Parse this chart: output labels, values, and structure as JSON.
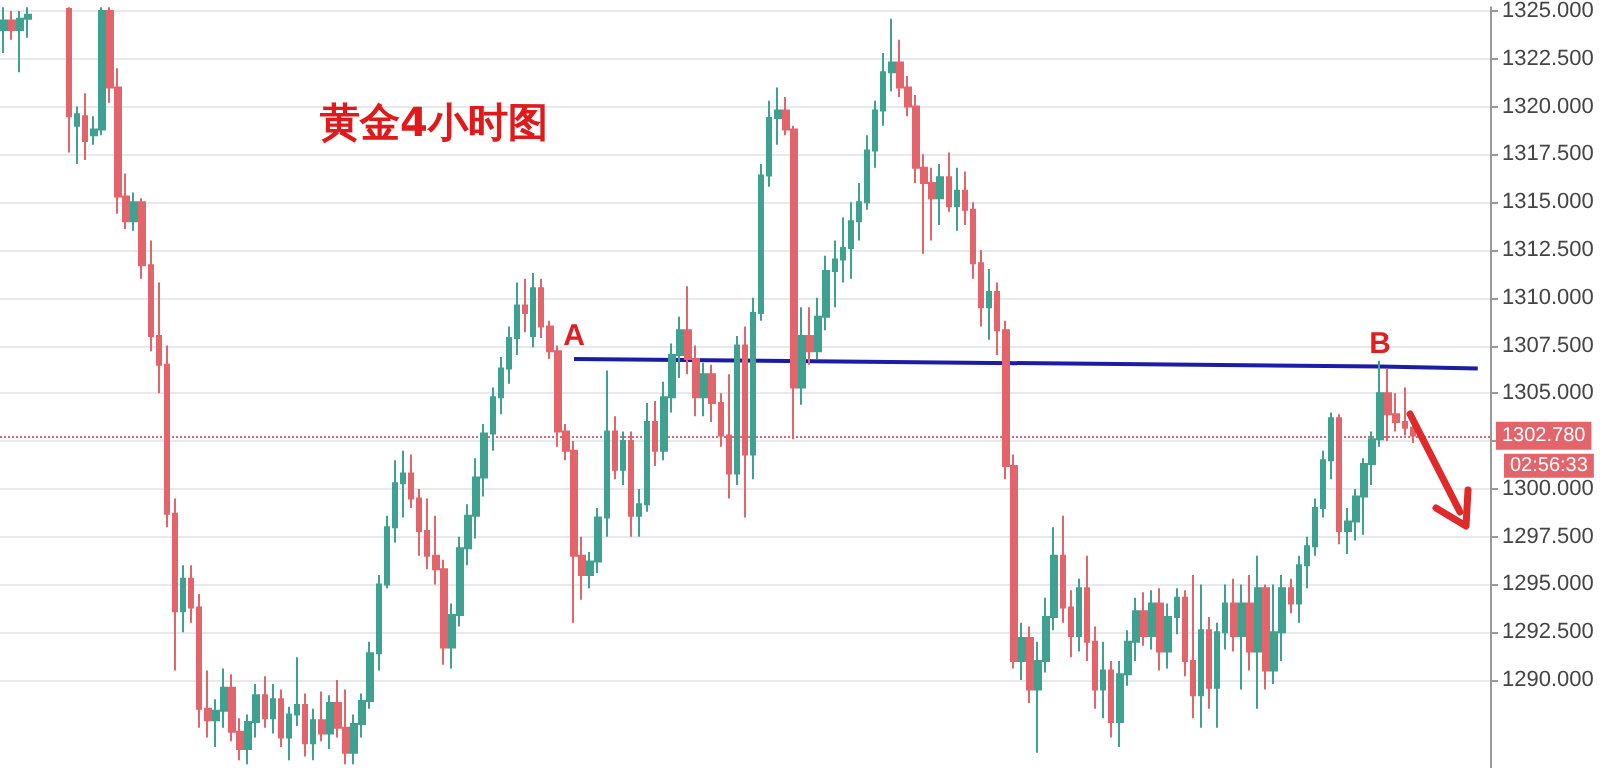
{
  "chart_data": {
    "type": "candlestick",
    "title": "黄金4小时图",
    "tick_labels": "y",
    "grid": "y",
    "ylim": [
      1285.4,
      1325.2
    ],
    "yticks": [
      {
        "value": 1290,
        "label": "1290.000"
      },
      {
        "value": 1292.5,
        "label": "1292.500"
      },
      {
        "value": 1295,
        "label": "1295.000"
      },
      {
        "value": 1297.5,
        "label": "1297.500"
      },
      {
        "value": 1300,
        "label": "1300.000"
      },
      {
        "value": 1302.5,
        "label": null
      },
      {
        "value": 1305,
        "label": "1305.000"
      },
      {
        "value": 1307.5,
        "label": "1307.500"
      },
      {
        "value": 1310,
        "label": "1310.000"
      },
      {
        "value": 1312.5,
        "label": "1312.500"
      },
      {
        "value": 1315,
        "label": "1315.000"
      },
      {
        "value": 1317.5,
        "label": "1317.500"
      },
      {
        "value": 1320,
        "label": "1320.000"
      },
      {
        "value": 1322.5,
        "label": "1322.500"
      },
      {
        "value": 1325,
        "label": "1325.000"
      }
    ],
    "ref_lines": [
      {
        "axis": "y",
        "value": 1302.78,
        "label": "1302.780",
        "color": "#e3646a",
        "line_style": "dotted"
      }
    ],
    "annotations": [
      "02:56:33"
    ],
    "categories": [
      null,
      null,
      null,
      null,
      null,
      null,
      null,
      null,
      null,
      null,
      null,
      null,
      null,
      null,
      null,
      null,
      null,
      null,
      null,
      null,
      null,
      null,
      null,
      null,
      null,
      null,
      null,
      null,
      null,
      null,
      null,
      null,
      null,
      null,
      null,
      null,
      null,
      null,
      null,
      null,
      null,
      null,
      null,
      null,
      null,
      null,
      null,
      null,
      null,
      null,
      null,
      null,
      null,
      null,
      null,
      null,
      null,
      null,
      null,
      null,
      null,
      null,
      null,
      null,
      null,
      null,
      null,
      null,
      null,
      null,
      null,
      null,
      null,
      null,
      null,
      null,
      null,
      null,
      null,
      null,
      null,
      null,
      null,
      null,
      null,
      null,
      null,
      null,
      null,
      null,
      null,
      null,
      null,
      null,
      null,
      null,
      null,
      null,
      null,
      null,
      null,
      null,
      null,
      null,
      null,
      null,
      null,
      null,
      null,
      null,
      null,
      null,
      null,
      null,
      null,
      null,
      null,
      null,
      null,
      null,
      null,
      null,
      null,
      null,
      null,
      null,
      null,
      null,
      null,
      null,
      null,
      null,
      null,
      null,
      null,
      null,
      null,
      null,
      null,
      null,
      null,
      null,
      null,
      null,
      null,
      null,
      null,
      null,
      null,
      null,
      null,
      null,
      null,
      null,
      null,
      null,
      null,
      null,
      null,
      null,
      null,
      null,
      null,
      null,
      null,
      null,
      null,
      null,
      null,
      null,
      null,
      null,
      null,
      null,
      null,
      null,
      null,
      null,
      null,
      null,
      null,
      null,
      null
    ],
    "series": [
      {
        "ohlc": [
          [
            1324.0,
            1325.2,
            1322.8,
            1324.5
          ],
          [
            1324.5,
            1325.0,
            1323.5,
            1324.0
          ],
          [
            1324.0,
            1325.0,
            1321.8,
            1324.6
          ],
          [
            1324.6,
            1325.2,
            1323.6,
            1324.8
          ],
          null,
          null,
          null,
          null,
          [
            1325.1,
            1325.2,
            1317.6,
            1319.5
          ],
          [
            1319.0,
            1320.0,
            1317.0,
            1319.6
          ],
          [
            1319.5,
            1320.7,
            1317.2,
            1318.2
          ],
          [
            1318.5,
            1319.5,
            1318.0,
            1318.8
          ],
          [
            1318.8,
            1325.2,
            1318.5,
            1325.0
          ],
          [
            1325.0,
            1325.2,
            1320.2,
            1321.0
          ],
          [
            1321.0,
            1322.0,
            1314.4,
            1315.3
          ],
          [
            1315.3,
            1316.5,
            1313.6,
            1314.0
          ],
          [
            1314.0,
            1315.5,
            1313.5,
            1315.0
          ],
          [
            1315.0,
            1315.2,
            1311.0,
            1311.7
          ],
          [
            1311.7,
            1313.0,
            1307.2,
            1308.0
          ],
          [
            1308.0,
            1310.8,
            1305.0,
            1306.5
          ],
          [
            1306.5,
            1307.5,
            1298.0,
            1298.7
          ],
          [
            1298.7,
            1299.5,
            1290.5,
            1293.6
          ],
          [
            1293.6,
            1296.0,
            1292.5,
            1295.3
          ],
          [
            1295.3,
            1296.0,
            1293.0,
            1293.8
          ],
          [
            1293.8,
            1294.5,
            1287.5,
            1288.5
          ],
          [
            1288.5,
            1290.5,
            1287.0,
            1287.9
          ],
          [
            1287.9,
            1289.0,
            1286.5,
            1288.4
          ],
          [
            1288.4,
            1290.6,
            1287.5,
            1289.6
          ],
          [
            1289.6,
            1290.3,
            1286.8,
            1287.3
          ],
          [
            1287.3,
            1288.0,
            1285.8,
            1286.4
          ],
          [
            1286.4,
            1288.2,
            1285.6,
            1287.8
          ],
          [
            1287.8,
            1289.8,
            1287.0,
            1289.2
          ],
          [
            1289.2,
            1290.2,
            1287.5,
            1288.0
          ],
          [
            1288.0,
            1289.8,
            1287.2,
            1289.0
          ],
          [
            1289.0,
            1289.5,
            1286.5,
            1287.0
          ],
          [
            1287.0,
            1288.6,
            1285.8,
            1288.2
          ],
          [
            1288.2,
            1291.2,
            1287.6,
            1288.7
          ],
          [
            1288.7,
            1289.3,
            1286.0,
            1286.7
          ],
          [
            1286.7,
            1288.5,
            1285.8,
            1287.9
          ],
          [
            1287.9,
            1289.4,
            1286.8,
            1287.2
          ],
          [
            1287.2,
            1289.2,
            1286.4,
            1288.8
          ],
          [
            1288.8,
            1290.0,
            1287.0,
            1287.5
          ],
          [
            1287.5,
            1289.5,
            1285.6,
            1286.2
          ],
          [
            1286.2,
            1288.2,
            1285.6,
            1287.7
          ],
          [
            1287.7,
            1289.3,
            1287.0,
            1288.9
          ],
          [
            1288.9,
            1292.0,
            1288.5,
            1291.4
          ],
          [
            1291.4,
            1295.5,
            1290.5,
            1295.0
          ],
          [
            1295.0,
            1298.6,
            1294.8,
            1298.0
          ],
          [
            1298.0,
            1301.5,
            1297.2,
            1300.3
          ],
          [
            1300.3,
            1302.0,
            1298.5,
            1300.8
          ],
          [
            1300.8,
            1301.8,
            1299.0,
            1299.5
          ],
          [
            1299.5,
            1300.0,
            1296.5,
            1297.8
          ],
          [
            1297.8,
            1299.5,
            1295.8,
            1296.5
          ],
          [
            1296.5,
            1298.6,
            1295.0,
            1295.8
          ],
          [
            1295.8,
            1296.3,
            1290.8,
            1291.7
          ],
          [
            1291.7,
            1294.0,
            1290.6,
            1293.4
          ],
          [
            1293.4,
            1297.5,
            1292.8,
            1296.9
          ],
          [
            1296.9,
            1299.2,
            1296.0,
            1298.6
          ],
          [
            1298.6,
            1301.6,
            1297.4,
            1300.6
          ],
          [
            1300.6,
            1303.4,
            1299.6,
            1302.9
          ],
          [
            1302.9,
            1305.3,
            1302.0,
            1304.8
          ],
          [
            1304.8,
            1306.9,
            1303.9,
            1306.3
          ],
          [
            1306.3,
            1308.5,
            1305.5,
            1307.9
          ],
          [
            1307.9,
            1310.8,
            1307.0,
            1309.6
          ],
          [
            1309.6,
            1311.0,
            1308.2,
            1309.2
          ],
          [
            1308.0,
            1311.3,
            1307.4,
            1310.5
          ],
          [
            1310.5,
            1311.0,
            1307.9,
            1308.5
          ],
          [
            1308.5,
            1308.8,
            1306.8,
            1307.2
          ],
          [
            1307.2,
            1307.5,
            1302.2,
            1303.0
          ],
          [
            1303.0,
            1303.4,
            1301.5,
            1302.0
          ],
          [
            1302.0,
            1302.5,
            1293.0,
            1296.5
          ],
          [
            1296.5,
            1297.5,
            1294.2,
            1295.5
          ],
          [
            1295.5,
            1296.7,
            1294.8,
            1296.2
          ],
          [
            1296.2,
            1299.0,
            1295.6,
            1298.5
          ],
          [
            1298.5,
            1306.2,
            1297.5,
            1303.0
          ],
          [
            1303.0,
            1303.8,
            1300.5,
            1301.0
          ],
          [
            1301.0,
            1303.0,
            1300.2,
            1302.5
          ],
          [
            1302.5,
            1303.0,
            1297.5,
            1298.6
          ],
          [
            1298.6,
            1300.0,
            1297.5,
            1299.2
          ],
          [
            1299.2,
            1304.5,
            1298.8,
            1303.5
          ],
          [
            1303.5,
            1304.6,
            1301.2,
            1302.0
          ],
          [
            1302.0,
            1305.6,
            1301.5,
            1304.8
          ],
          [
            1304.8,
            1307.6,
            1304.0,
            1307.0
          ],
          [
            1307.0,
            1309.0,
            1305.8,
            1308.3
          ],
          [
            1308.3,
            1310.6,
            1306.0,
            1306.8
          ],
          [
            1306.8,
            1307.5,
            1303.8,
            1304.8
          ],
          [
            1304.8,
            1306.6,
            1303.8,
            1306.0
          ],
          [
            1306.0,
            1306.5,
            1303.5,
            1304.5
          ],
          [
            1304.5,
            1305.0,
            1302.2,
            1302.8
          ],
          [
            1302.8,
            1306.0,
            1299.5,
            1300.8
          ],
          [
            1300.8,
            1308.0,
            1300.2,
            1307.5
          ],
          [
            1307.5,
            1308.5,
            1298.5,
            1301.8
          ],
          [
            1301.8,
            1310.0,
            1300.5,
            1309.2
          ],
          [
            1309.2,
            1317.0,
            1308.8,
            1316.4
          ],
          [
            1316.4,
            1320.3,
            1315.8,
            1319.4
          ],
          [
            1319.4,
            1321.0,
            1318.0,
            1319.8
          ],
          [
            1319.8,
            1320.5,
            1318.5,
            1318.8
          ],
          [
            1318.8,
            1319.0,
            1302.6,
            1305.3
          ],
          [
            1305.3,
            1309.5,
            1304.4,
            1308.0
          ],
          [
            1308.0,
            1309.5,
            1306.5,
            1307.2
          ],
          [
            1307.2,
            1310.0,
            1306.8,
            1309.0
          ],
          [
            1309.0,
            1312.2,
            1308.3,
            1311.4
          ],
          [
            1311.4,
            1313.0,
            1309.5,
            1312.0
          ],
          [
            1312.0,
            1314.2,
            1310.8,
            1312.6
          ],
          [
            1312.6,
            1315.0,
            1311.0,
            1314.0
          ],
          [
            1314.0,
            1316.0,
            1313.0,
            1315.0
          ],
          [
            1315.0,
            1318.5,
            1314.6,
            1317.7
          ],
          [
            1317.7,
            1320.3,
            1316.8,
            1319.8
          ],
          [
            1319.8,
            1322.8,
            1319.0,
            1321.8
          ],
          [
            1321.8,
            1324.6,
            1320.8,
            1322.3
          ],
          [
            1322.3,
            1323.5,
            1320.5,
            1321.0
          ],
          [
            1321.0,
            1321.6,
            1319.5,
            1320.0
          ],
          [
            1320.0,
            1320.6,
            1316.0,
            1316.8
          ],
          [
            1316.8,
            1317.5,
            1312.3,
            1316.0
          ],
          [
            1316.0,
            1316.8,
            1313.0,
            1315.2
          ],
          [
            1315.2,
            1317.0,
            1313.8,
            1316.3
          ],
          [
            1316.3,
            1317.6,
            1314.5,
            1314.8
          ],
          [
            1314.8,
            1316.8,
            1313.5,
            1315.6
          ],
          [
            1315.6,
            1316.6,
            1313.8,
            1314.6
          ],
          [
            1314.6,
            1315.0,
            1311.0,
            1311.8
          ],
          [
            1311.8,
            1312.5,
            1308.5,
            1309.5
          ],
          [
            1309.5,
            1311.5,
            1307.8,
            1310.3
          ],
          [
            1310.3,
            1310.8,
            1307.0,
            1308.3
          ],
          [
            1308.3,
            1308.8,
            1300.5,
            1301.2
          ],
          [
            1301.2,
            1301.8,
            1290.6,
            1291.0
          ],
          [
            1291.0,
            1293.0,
            1290.0,
            1292.2
          ],
          [
            1292.2,
            1292.8,
            1288.8,
            1289.5
          ],
          [
            1289.5,
            1292.0,
            1286.2,
            1291.0
          ],
          [
            1291.0,
            1294.3,
            1290.4,
            1293.3
          ],
          [
            1293.3,
            1298.0,
            1292.6,
            1296.5
          ],
          [
            1296.5,
            1298.6,
            1293.0,
            1293.8
          ],
          [
            1293.8,
            1294.7,
            1291.2,
            1292.3
          ],
          [
            1292.3,
            1295.3,
            1291.5,
            1294.8
          ],
          [
            1294.8,
            1296.5,
            1291.0,
            1292.0
          ],
          [
            1292.0,
            1292.8,
            1288.5,
            1289.5
          ],
          [
            1289.5,
            1292.0,
            1288.0,
            1290.5
          ],
          [
            1290.5,
            1291.0,
            1287.0,
            1287.8
          ],
          [
            1287.8,
            1291.0,
            1286.5,
            1290.3
          ],
          [
            1290.3,
            1292.6,
            1289.7,
            1292.0
          ],
          [
            1292.0,
            1294.3,
            1291.0,
            1293.6
          ],
          [
            1293.6,
            1294.6,
            1291.8,
            1292.3
          ],
          [
            1292.3,
            1294.7,
            1291.6,
            1294.0
          ],
          [
            1294.0,
            1294.8,
            1290.5,
            1291.5
          ],
          [
            1291.5,
            1294.0,
            1290.6,
            1293.3
          ],
          [
            1293.3,
            1294.8,
            1292.4,
            1294.3
          ],
          [
            1294.3,
            1294.7,
            1290.2,
            1291.0
          ],
          [
            1291.0,
            1295.5,
            1288.0,
            1289.2
          ],
          [
            1289.2,
            1295.0,
            1287.5,
            1292.6
          ],
          [
            1292.6,
            1293.3,
            1288.5,
            1289.6
          ],
          [
            1289.6,
            1293.0,
            1287.5,
            1292.5
          ],
          [
            1292.5,
            1295.0,
            1291.6,
            1294.0
          ],
          [
            1294.0,
            1295.3,
            1291.5,
            1292.3
          ],
          [
            1292.3,
            1295.0,
            1289.5,
            1294.0
          ],
          [
            1294.0,
            1295.5,
            1290.5,
            1291.5
          ],
          [
            1291.5,
            1296.5,
            1288.5,
            1294.8
          ],
          [
            1294.8,
            1295.0,
            1289.5,
            1290.5
          ],
          [
            1290.5,
            1295.0,
            1289.8,
            1292.5
          ],
          [
            1292.5,
            1295.5,
            1291.0,
            1294.8
          ],
          [
            1294.8,
            1295.3,
            1293.5,
            1294.0
          ],
          [
            1294.0,
            1296.5,
            1293.0,
            1296.0
          ],
          [
            1296.0,
            1297.5,
            1294.8,
            1297.0
          ],
          [
            1297.0,
            1299.5,
            1296.5,
            1299.0
          ],
          [
            1299.0,
            1302.0,
            1298.5,
            1301.5
          ],
          [
            1301.5,
            1304.0,
            1300.5,
            1303.7
          ],
          [
            1303.7,
            1303.9,
            1297.1,
            1297.8
          ],
          [
            1297.8,
            1299.0,
            1296.6,
            1298.3
          ],
          [
            1298.3,
            1300.0,
            1297.3,
            1299.6
          ],
          [
            1299.6,
            1301.6,
            1297.6,
            1301.3
          ],
          [
            1301.3,
            1303.0,
            1300.2,
            1302.6
          ],
          [
            1302.6,
            1306.7,
            1302.2,
            1305.0
          ],
          [
            1305.0,
            1306.3,
            1302.5,
            1303.9
          ],
          [
            1303.9,
            1305.0,
            1303.0,
            1303.5
          ],
          [
            1303.5,
            1305.3,
            1302.8,
            1303.2
          ],
          [
            1303.2,
            1303.5,
            1302.4,
            1302.8
          ],
          null,
          null,
          null,
          null,
          null,
          null,
          null,
          null,
          null
        ],
        "colors": [
          "#3fa18f",
          "#e3646a",
          "#3fa18f",
          "#3fa18f",
          null,
          null,
          null,
          null,
          "#e3646a",
          "#3fa18f",
          "#e3646a",
          "#3fa18f",
          "#3fa18f",
          "#e3646a",
          "#e3646a",
          "#e3646a",
          "#3fa18f",
          "#e3646a",
          "#e3646a",
          "#e3646a",
          "#e3646a",
          "#e3646a",
          "#3fa18f",
          "#e3646a",
          "#e3646a",
          "#e3646a",
          "#3fa18f",
          "#3fa18f",
          "#e3646a",
          "#e3646a",
          "#3fa18f",
          "#3fa18f",
          "#e3646a",
          "#3fa18f",
          "#e3646a",
          "#3fa18f",
          "#3fa18f",
          "#e3646a",
          "#3fa18f",
          "#e3646a",
          "#3fa18f",
          "#e3646a",
          "#e3646a",
          "#3fa18f",
          "#3fa18f",
          "#3fa18f",
          "#3fa18f",
          "#3fa18f",
          "#3fa18f",
          "#3fa18f",
          "#e3646a",
          "#e3646a",
          "#e3646a",
          "#e3646a",
          "#e3646a",
          "#3fa18f",
          "#3fa18f",
          "#3fa18f",
          "#3fa18f",
          "#3fa18f",
          "#3fa18f",
          "#3fa18f",
          "#3fa18f",
          "#3fa18f",
          "#e3646a",
          "#3fa18f",
          "#e3646a",
          "#e3646a",
          "#e3646a",
          "#e3646a",
          "#e3646a",
          "#e3646a",
          "#3fa18f",
          "#3fa18f",
          "#3fa18f",
          "#e3646a",
          "#3fa18f",
          "#e3646a",
          "#3fa18f",
          "#3fa18f",
          "#e3646a",
          "#3fa18f",
          "#3fa18f",
          "#3fa18f",
          "#e3646a",
          "#e3646a",
          "#3fa18f",
          "#e3646a",
          "#e3646a",
          "#e3646a",
          "#3fa18f",
          "#e3646a",
          "#3fa18f",
          "#3fa18f",
          "#3fa18f",
          "#3fa18f",
          "#e3646a",
          "#e3646a",
          "#3fa18f",
          "#e3646a",
          "#3fa18f",
          "#3fa18f",
          "#3fa18f",
          "#3fa18f",
          "#3fa18f",
          "#3fa18f",
          "#3fa18f",
          "#3fa18f",
          "#3fa18f",
          "#3fa18f",
          "#e3646a",
          "#e3646a",
          "#e3646a",
          "#e3646a",
          "#e3646a",
          "#3fa18f",
          "#e3646a",
          "#3fa18f",
          "#e3646a",
          "#e3646a",
          "#e3646a",
          "#3fa18f",
          "#e3646a",
          "#e3646a",
          "#e3646a",
          "#3fa18f",
          "#e3646a",
          "#3fa18f",
          "#3fa18f",
          "#3fa18f",
          "#e3646a",
          "#e3646a",
          "#3fa18f",
          "#e3646a",
          "#e3646a",
          "#3fa18f",
          "#e3646a",
          "#3fa18f",
          "#3fa18f",
          "#3fa18f",
          "#e3646a",
          "#3fa18f",
          "#e3646a",
          "#3fa18f",
          "#3fa18f",
          "#e3646a",
          "#e3646a",
          "#3fa18f",
          "#e3646a",
          "#3fa18f",
          "#3fa18f",
          "#e3646a",
          "#3fa18f",
          "#e3646a",
          "#3fa18f",
          "#e3646a",
          "#3fa18f",
          "#3fa18f",
          "#e3646a",
          "#3fa18f",
          "#3fa18f",
          "#3fa18f",
          "#3fa18f",
          "#3fa18f",
          "#e3646a",
          "#3fa18f",
          "#3fa18f",
          "#3fa18f",
          "#3fa18f",
          "#3fa18f",
          "#e3646a",
          "#e3646a",
          "#e3646a",
          "#e3646a",
          null,
          null,
          null,
          null,
          null,
          null,
          null,
          null,
          null
        ]
      },
      {
        "type": "line",
        "color": "#1c1ca8",
        "values": [
          null,
          null,
          null,
          null,
          null,
          null,
          null,
          null,
          null,
          null,
          null,
          null,
          null,
          null,
          null,
          null,
          null,
          null,
          null,
          null,
          null,
          null,
          null,
          null,
          null,
          null,
          null,
          null,
          null,
          null,
          null,
          null,
          null,
          null,
          null,
          null,
          null,
          null,
          null,
          null,
          null,
          null,
          null,
          null,
          null,
          null,
          null,
          null,
          null,
          null,
          null,
          null,
          null,
          null,
          null,
          null,
          null,
          null,
          null,
          null,
          null,
          null,
          null,
          null,
          null,
          null,
          null,
          null,
          null,
          null,
          1306.8,
          null,
          null,
          null,
          null,
          null,
          null,
          null,
          null,
          null,
          null,
          null,
          null,
          null,
          null,
          null,
          null,
          null,
          null,
          null,
          null,
          null,
          null,
          null,
          null,
          null,
          null,
          null,
          null,
          null,
          null,
          null,
          null,
          null,
          null,
          null,
          null,
          null,
          null,
          null,
          null,
          null,
          null,
          null,
          null,
          null,
          null,
          null,
          null,
          null,
          null,
          null,
          null,
          null,
          null,
          null,
          null,
          null,
          null,
          null,
          null,
          null,
          null,
          null,
          null,
          null,
          null,
          null,
          null,
          null,
          null,
          null,
          null,
          null,
          null,
          null,
          null,
          null,
          null,
          null,
          null,
          null,
          null,
          null,
          null,
          null,
          null,
          null,
          null,
          null,
          null,
          null,
          null,
          null,
          null,
          null,
          null,
          null,
          null,
          1306.4,
          null,
          null,
          null,
          null,
          null,
          null,
          null,
          null,
          null,
          null,
          null,
          1306.3,
          null
        ],
        "value_labels": [
          null,
          null,
          null,
          null,
          null,
          null,
          null,
          null,
          null,
          null,
          null,
          null,
          null,
          null,
          null,
          null,
          null,
          null,
          null,
          null,
          null,
          null,
          null,
          null,
          null,
          null,
          null,
          null,
          null,
          null,
          null,
          null,
          null,
          null,
          null,
          null,
          null,
          null,
          null,
          null,
          null,
          null,
          null,
          null,
          null,
          null,
          null,
          null,
          null,
          null,
          null,
          null,
          null,
          null,
          null,
          null,
          null,
          null,
          null,
          null,
          null,
          null,
          null,
          null,
          null,
          null,
          null,
          null,
          null,
          null,
          "A",
          null,
          null,
          null,
          null,
          null,
          null,
          null,
          null,
          null,
          null,
          null,
          null,
          null,
          null,
          null,
          null,
          null,
          null,
          null,
          null,
          null,
          null,
          null,
          null,
          null,
          null,
          null,
          null,
          null,
          null,
          null,
          null,
          null,
          null,
          null,
          null,
          null,
          null,
          null,
          null,
          null,
          null,
          null,
          null,
          null,
          null,
          null,
          null,
          null,
          null,
          null,
          null,
          null,
          null,
          null,
          null,
          null,
          null,
          null,
          null,
          null,
          null,
          null,
          null,
          null,
          null,
          null,
          null,
          null,
          null,
          null,
          null,
          null,
          null,
          null,
          null,
          null,
          null,
          null,
          null,
          null,
          null,
          null,
          null,
          null,
          null,
          null,
          null,
          null,
          null,
          null,
          null,
          null,
          null,
          null,
          null,
          null,
          null,
          "B",
          null,
          null,
          null,
          null,
          null,
          null,
          null,
          null,
          null,
          null,
          null,
          null,
          null
        ]
      }
    ]
  }
}
